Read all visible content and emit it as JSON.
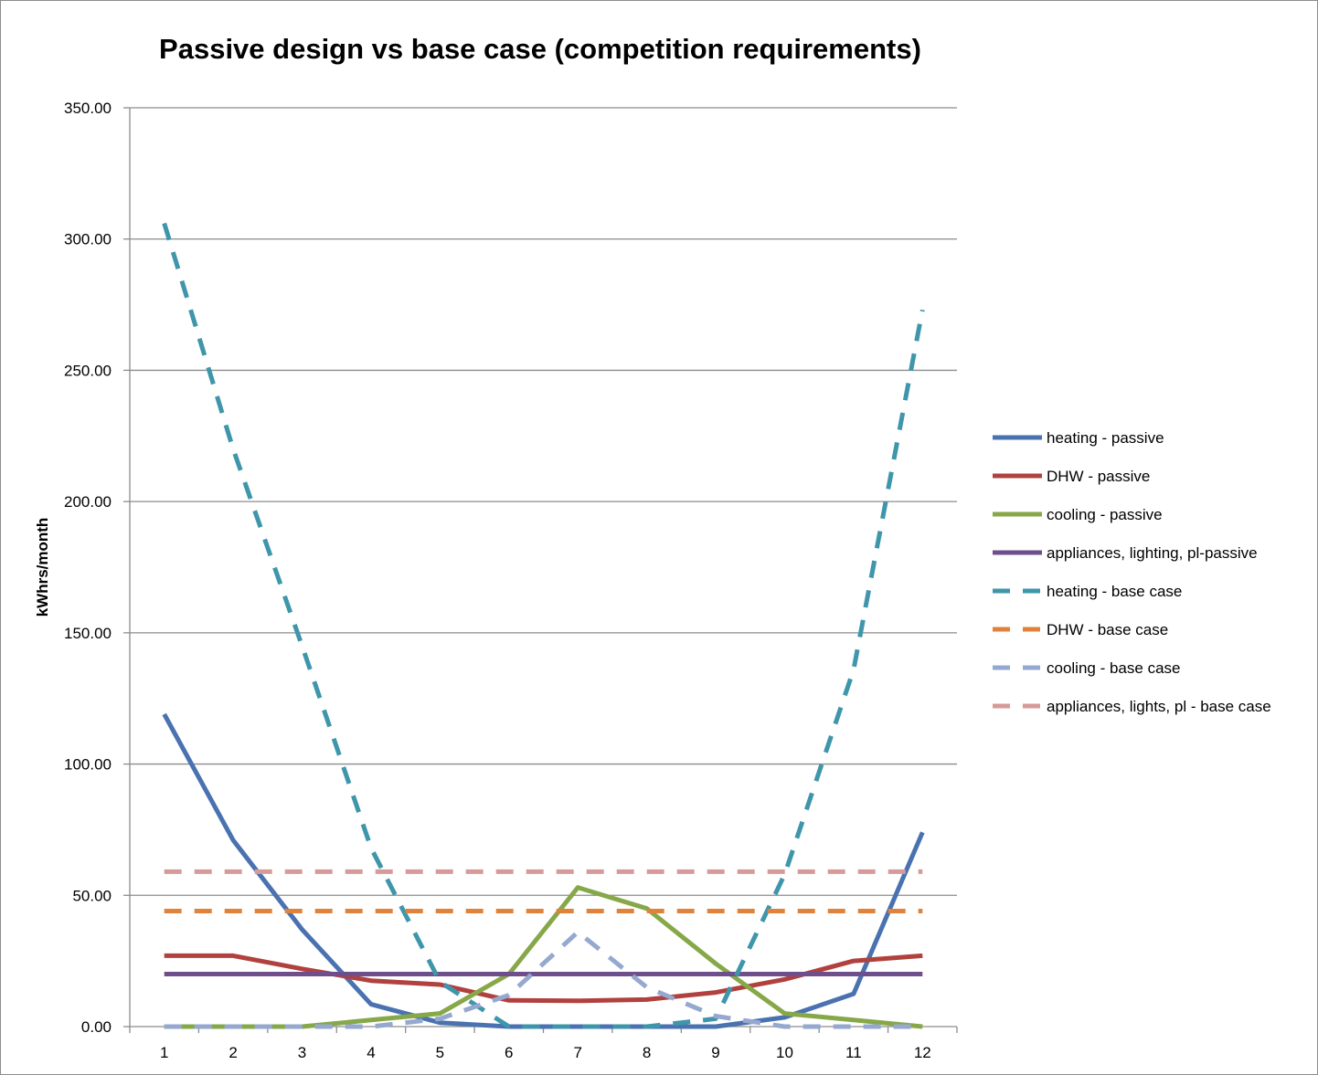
{
  "chart_data": {
    "type": "line",
    "title": "Passive design vs base case (competition requirements)",
    "ylabel": "kWhrs/month",
    "xlabel": "",
    "categories": [
      "1",
      "2",
      "3",
      "4",
      "5",
      "6",
      "7",
      "8",
      "9",
      "10",
      "11",
      "12"
    ],
    "ylim": [
      0,
      350
    ],
    "yticks": [
      "0.00",
      "50.00",
      "100.00",
      "150.00",
      "200.00",
      "250.00",
      "300.00",
      "350.00"
    ],
    "grid": "horizontal",
    "legend_position": "right",
    "series": [
      {
        "name": "heating - passive",
        "color": "#4a72b0",
        "dash": false,
        "values": [
          119,
          71,
          37,
          8.5,
          1.5,
          0,
          0,
          0,
          0,
          3.5,
          12.5,
          74
        ]
      },
      {
        "name": "DHW - passive",
        "color": "#b0413e",
        "dash": false,
        "values": [
          27,
          27,
          22,
          17.5,
          16,
          10,
          9.8,
          10.3,
          13,
          18,
          25,
          27
        ]
      },
      {
        "name": "cooling - passive",
        "color": "#86a848",
        "dash": false,
        "values": [
          0,
          0,
          0,
          2.5,
          5,
          20,
          53,
          45,
          24,
          5,
          2.5,
          0
        ]
      },
      {
        "name": "appliances, lighting, pl-passive",
        "color": "#6e4f8c",
        "dash": false,
        "values": [
          20,
          20,
          20,
          20,
          20,
          20,
          20,
          20,
          20,
          20,
          20,
          20
        ]
      },
      {
        "name": "heating - base case",
        "color": "#3f96ab",
        "dash": true,
        "values": [
          306,
          220,
          145,
          68,
          17,
          0,
          0,
          0,
          3,
          58,
          136,
          273
        ]
      },
      {
        "name": "DHW - base case",
        "color": "#e0823a",
        "dash": true,
        "values": [
          44,
          44,
          44,
          44,
          44,
          44,
          44,
          44,
          44,
          44,
          44,
          44
        ]
      },
      {
        "name": "cooling - base case",
        "color": "#95a8cf",
        "dash": true,
        "values": [
          0,
          0,
          0,
          0,
          3,
          12,
          36,
          15,
          4,
          0,
          0,
          0
        ]
      },
      {
        "name": "appliances, lights, pl - base case",
        "color": "#d79a9a",
        "dash": true,
        "values": [
          59,
          59,
          59,
          59,
          59,
          59,
          59,
          59,
          59,
          59,
          59,
          59
        ]
      }
    ]
  }
}
